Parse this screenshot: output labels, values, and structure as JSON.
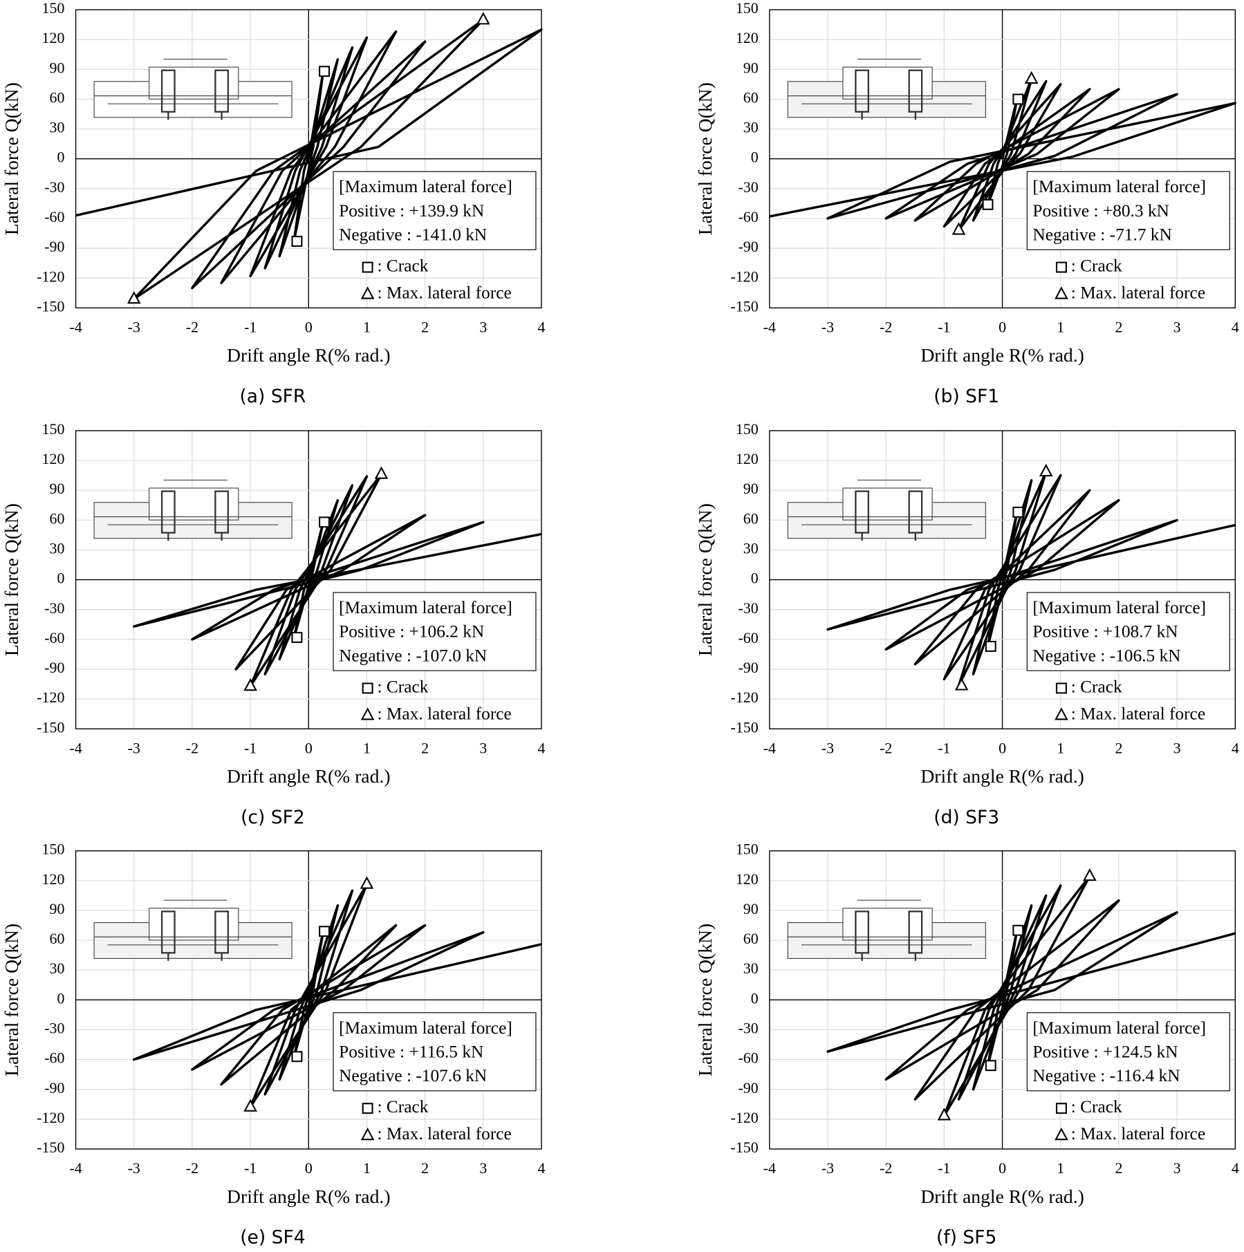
{
  "chart_data": [
    {
      "type": "line",
      "caption": "(a) SFR",
      "xlabel": "Drift angle R(% rad.)",
      "ylabel": "Lateral force Q(kN)",
      "xlim": [
        -4,
        4
      ],
      "ylim": [
        -150,
        150
      ],
      "xticks": [
        -4,
        -3,
        -2,
        -1,
        0,
        1,
        2,
        3,
        4
      ],
      "yticks": [
        -150,
        -120,
        -90,
        -60,
        -30,
        0,
        30,
        60,
        90,
        120,
        150
      ],
      "grid": true,
      "annotations": [
        "[Maximum  lateral force]",
        "Positive : +139.9 kN",
        "Negative : -141.0 kN"
      ],
      "series": [
        {
          "color": "#000000",
          "x": [
            0,
            0.25,
            0.08,
            -0.25,
            -0.08,
            0.5,
            0.15,
            -0.5,
            -0.15,
            0.75,
            0.23,
            -0.75,
            -0.23,
            1,
            0.3,
            -1,
            -0.3,
            1.5,
            0.45,
            -1.5,
            -0.45,
            2,
            0.6,
            -2,
            -0.6,
            3,
            0.9,
            -3,
            -0.9,
            4,
            1.2,
            -4
          ],
          "values": [
            0,
            88,
            12,
            -82,
            -12,
            100,
            12,
            -98,
            -12,
            112,
            12,
            -110,
            -12,
            122,
            12,
            -118,
            -12,
            128,
            12,
            -125,
            -12,
            118,
            12,
            -130,
            -12,
            139.9,
            12,
            -141,
            -12,
            130,
            12,
            -57
          ]
        },
        {
          "name": ": Crack",
          "marker": "square",
          "color": "#000000",
          "x": [
            0.27,
            -0.2
          ],
          "values": [
            88,
            -83
          ]
        },
        {
          "name": ": Max. lateral force",
          "marker": "triangle",
          "color": "#000000",
          "x": [
            3,
            -3
          ],
          "values": [
            139.9,
            -141
          ]
        }
      ]
    },
    {
      "type": "line",
      "caption": "(b) SF1",
      "xlabel": "Drift angle R(% rad.)",
      "ylabel": "Lateral force Q(kN)",
      "xlim": [
        -4,
        4
      ],
      "ylim": [
        -150,
        150
      ],
      "xticks": [
        -4,
        -3,
        -2,
        -1,
        0,
        1,
        2,
        3,
        4
      ],
      "yticks": [
        -150,
        -120,
        -90,
        -60,
        -30,
        0,
        30,
        60,
        90,
        120,
        150
      ],
      "grid": true,
      "annotations": [
        "[Maximum  lateral force]",
        "Positive : +80.3 kN",
        "Negative : -71.7 kN"
      ],
      "series": [
        {
          "color": "#000000",
          "x": [
            0,
            0.25,
            0.08,
            -0.25,
            -0.08,
            0.5,
            0.15,
            -0.5,
            -0.15,
            0.75,
            0.23,
            -0.75,
            -0.23,
            1,
            0.3,
            -1,
            -0.3,
            1.5,
            0.45,
            -1.5,
            -0.45,
            2,
            0.6,
            -2,
            -0.6,
            3,
            0.9,
            -3,
            -0.9,
            4,
            1.2,
            -4
          ],
          "values": [
            0,
            60,
            5,
            -46,
            -5,
            80.3,
            5,
            -62,
            -5,
            78,
            5,
            -71.7,
            -5,
            75,
            5,
            -68,
            -5,
            70,
            5,
            -62,
            -5,
            70,
            5,
            -60,
            -5,
            65,
            3,
            -60,
            -3,
            56,
            2,
            -58
          ]
        },
        {
          "name": ": Crack",
          "marker": "square",
          "color": "#000000",
          "x": [
            0.27,
            -0.25
          ],
          "values": [
            60,
            -46
          ]
        },
        {
          "name": ": Max. lateral force",
          "marker": "triangle",
          "color": "#000000",
          "x": [
            0.5,
            -0.75
          ],
          "values": [
            80.3,
            -71.7
          ]
        }
      ]
    },
    {
      "type": "line",
      "caption": "(c) SF2",
      "xlabel": "Drift angle R(% rad.)",
      "ylabel": "Lateral force Q(kN)",
      "xlim": [
        -4,
        4
      ],
      "ylim": [
        -150,
        150
      ],
      "xticks": [
        -4,
        -3,
        -2,
        -1,
        0,
        1,
        2,
        3,
        4
      ],
      "yticks": [
        -150,
        -120,
        -90,
        -60,
        -30,
        0,
        30,
        60,
        90,
        120,
        150
      ],
      "grid": true,
      "annotations": [
        "[Maximum  lateral force]",
        "Positive : +106.2 kN",
        "Negative : -107.0 kN"
      ],
      "series": [
        {
          "color": "#000000",
          "x": [
            0,
            0.25,
            0.08,
            -0.25,
            -0.08,
            0.5,
            0.15,
            -0.5,
            -0.15,
            0.75,
            0.23,
            -0.75,
            -0.23,
            1,
            0.3,
            -1,
            -0.3,
            1.25,
            0.38,
            -1.25,
            -0.38,
            2,
            0.6,
            -2,
            -0.6,
            3,
            0.9,
            -3,
            -0.9,
            4
          ],
          "values": [
            0,
            58,
            10,
            -58,
            -10,
            80,
            10,
            -80,
            -10,
            95,
            10,
            -95,
            -10,
            104,
            10,
            -107,
            -10,
            106.2,
            10,
            -90,
            -10,
            65,
            10,
            -60,
            -10,
            58,
            10,
            -47,
            -10,
            46
          ]
        },
        {
          "name": ": Crack",
          "marker": "square",
          "color": "#000000",
          "x": [
            0.27,
            -0.2
          ],
          "values": [
            58,
            -58
          ]
        },
        {
          "name": ": Max. lateral force",
          "marker": "triangle",
          "color": "#000000",
          "x": [
            1.25,
            -1
          ],
          "values": [
            106.2,
            -107
          ]
        }
      ]
    },
    {
      "type": "line",
      "caption": "(d) SF3",
      "xlabel": "Drift angle R(% rad.)",
      "ylabel": "Lateral force Q(kN)",
      "xlim": [
        -4,
        4
      ],
      "ylim": [
        -150,
        150
      ],
      "xticks": [
        -4,
        -3,
        -2,
        -1,
        0,
        1,
        2,
        3,
        4
      ],
      "yticks": [
        -150,
        -120,
        -90,
        -60,
        -30,
        0,
        30,
        60,
        90,
        120,
        150
      ],
      "grid": true,
      "annotations": [
        "[Maximum  lateral force]",
        "Positive : +108.7 kN",
        "Negative : -106.5 kN"
      ],
      "series": [
        {
          "color": "#000000",
          "x": [
            0,
            0.25,
            0.08,
            -0.25,
            -0.08,
            0.5,
            0.15,
            -0.5,
            -0.15,
            0.75,
            0.23,
            -0.75,
            -0.23,
            1,
            0.3,
            -1,
            -0.3,
            1.5,
            0.45,
            -1.5,
            -0.45,
            2,
            0.6,
            -2,
            -0.6,
            3,
            0.9,
            -3,
            -0.9,
            4
          ],
          "values": [
            0,
            68,
            10,
            -67,
            -10,
            100,
            10,
            -95,
            -10,
            108.7,
            10,
            -106.5,
            -10,
            105,
            10,
            -100,
            -10,
            90,
            10,
            -85,
            -10,
            80,
            10,
            -70,
            -10,
            60,
            10,
            -50,
            -10,
            55
          ]
        },
        {
          "name": ": Crack",
          "marker": "square",
          "color": "#000000",
          "x": [
            0.27,
            -0.2
          ],
          "values": [
            68,
            -67
          ]
        },
        {
          "name": ": Max. lateral force",
          "marker": "triangle",
          "color": "#000000",
          "x": [
            0.75,
            -0.7
          ],
          "values": [
            108.7,
            -106.5
          ]
        }
      ]
    },
    {
      "type": "line",
      "caption": "(e) SF4",
      "xlabel": "Drift angle R(% rad.)",
      "ylabel": "Lateral force Q(kN)",
      "xlim": [
        -4,
        4
      ],
      "ylim": [
        -150,
        150
      ],
      "xticks": [
        -4,
        -3,
        -2,
        -1,
        0,
        1,
        2,
        3,
        4
      ],
      "yticks": [
        -150,
        -120,
        -90,
        -60,
        -30,
        0,
        30,
        60,
        90,
        120,
        150
      ],
      "grid": true,
      "annotations": [
        "[Maximum  lateral force]",
        "Positive : +116.5 kN",
        "Negative : -107.6 kN"
      ],
      "series": [
        {
          "color": "#000000",
          "x": [
            0,
            0.25,
            0.08,
            -0.25,
            -0.08,
            0.5,
            0.15,
            -0.5,
            -0.15,
            0.75,
            0.23,
            -0.75,
            -0.23,
            1,
            0.3,
            -1,
            -0.3,
            1.5,
            0.45,
            -1.5,
            -0.45,
            2,
            0.6,
            -2,
            -0.6,
            3,
            0.9,
            -3,
            -0.9,
            4
          ],
          "values": [
            0,
            69,
            10,
            -57,
            -10,
            95,
            10,
            -80,
            -10,
            110,
            10,
            -95,
            -10,
            116.5,
            10,
            -107.6,
            -10,
            75,
            10,
            -85,
            -10,
            75,
            10,
            -70,
            -10,
            68,
            10,
            -60,
            -10,
            56
          ]
        },
        {
          "name": ": Crack",
          "marker": "square",
          "color": "#000000",
          "x": [
            0.27,
            -0.2
          ],
          "values": [
            69,
            -57
          ]
        },
        {
          "name": ": Max. lateral force",
          "marker": "triangle",
          "color": "#000000",
          "x": [
            1,
            -1
          ],
          "values": [
            116.5,
            -107.6
          ]
        }
      ]
    },
    {
      "type": "line",
      "caption": "(f) SF5",
      "xlabel": "Drift angle R(% rad.)",
      "ylabel": "Lateral force Q(kN)",
      "xlim": [
        -4,
        4
      ],
      "ylim": [
        -150,
        150
      ],
      "xticks": [
        -4,
        -3,
        -2,
        -1,
        0,
        1,
        2,
        3,
        4
      ],
      "yticks": [
        -150,
        -120,
        -90,
        -60,
        -30,
        0,
        30,
        60,
        90,
        120,
        150
      ],
      "grid": true,
      "annotations": [
        "[Maximum  lateral force]",
        "Positive : +124.5 kN",
        "Negative : -116.4 kN"
      ],
      "series": [
        {
          "color": "#000000",
          "x": [
            0,
            0.25,
            0.08,
            -0.25,
            -0.08,
            0.5,
            0.15,
            -0.5,
            -0.15,
            0.75,
            0.23,
            -0.75,
            -0.23,
            1,
            0.3,
            -1,
            -0.3,
            1.5,
            0.45,
            -1.5,
            -0.45,
            2,
            0.6,
            -2,
            -0.6,
            3,
            0.9,
            -3,
            -0.9,
            4
          ],
          "values": [
            0,
            70,
            10,
            -66,
            -10,
            95,
            10,
            -90,
            -10,
            105,
            10,
            -100,
            -10,
            115,
            10,
            -116.4,
            -10,
            124.5,
            10,
            -100,
            -10,
            100,
            10,
            -80,
            -10,
            88,
            10,
            -52,
            -10,
            67
          ]
        },
        {
          "name": ": Crack",
          "marker": "square",
          "color": "#000000",
          "x": [
            0.27,
            -0.2
          ],
          "values": [
            70,
            -66
          ]
        },
        {
          "name": ": Max. lateral force",
          "marker": "triangle",
          "color": "#000000",
          "x": [
            1.5,
            -1
          ],
          "values": [
            124.5,
            -116.4
          ]
        }
      ]
    }
  ]
}
